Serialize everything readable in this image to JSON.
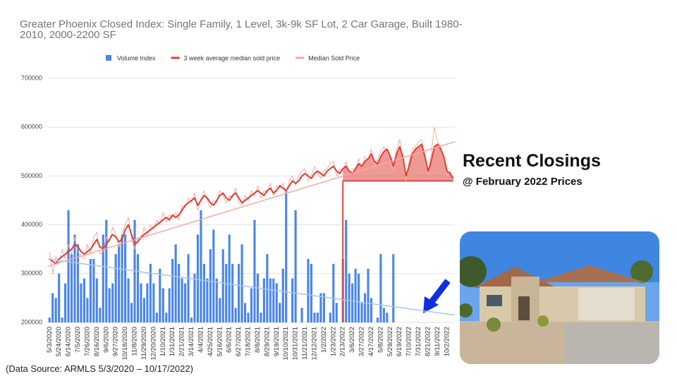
{
  "chart_data": {
    "type": "combo",
    "title": "Greater Phoenix Closed Index:  Single Family, 1 Level, 3k-9k SF Lot, 2 Car Garage, Built 1980-2010, 2000-2200 SF",
    "categories": [
      "5/3/2020",
      null,
      null,
      "5/24/2020",
      null,
      null,
      "6/14/2020",
      null,
      null,
      "7/5/2020",
      null,
      null,
      "7/26/2020",
      null,
      null,
      "8/16/2020",
      null,
      null,
      "9/6/2020",
      null,
      null,
      "9/27/2020",
      null,
      null,
      "10/18/2020",
      null,
      null,
      "11/8/2020",
      null,
      null,
      "11/29/2020",
      null,
      null,
      "12/20/2020",
      null,
      null,
      "1/10/2021",
      null,
      null,
      "1/31/2021",
      null,
      null,
      "2/21/2021",
      null,
      null,
      "3/14/2021",
      null,
      null,
      "4/4/2021",
      null,
      null,
      "4/25/2021",
      null,
      null,
      "5/16/2021",
      null,
      null,
      "6/6/2021",
      null,
      null,
      "6/27/2021",
      null,
      null,
      "7/18/2021",
      null,
      null,
      "8/8/2021",
      null,
      null,
      "8/29/2021",
      null,
      null,
      "9/19/2021",
      null,
      null,
      "10/10/2021",
      null,
      null,
      "10/31/2021",
      null,
      null,
      "11/21/2021",
      null,
      null,
      "12/12/2021",
      null,
      null,
      "1/2/2022",
      null,
      null,
      "1/23/2022",
      null,
      null,
      "2/13/2022",
      null,
      null,
      "3/6/2022",
      null,
      null,
      "3/27/2022",
      null,
      null,
      "4/17/2022",
      null,
      null,
      "5/8/2022",
      null,
      null,
      "5/29/2022",
      null,
      null,
      "6/19/2022",
      null,
      null,
      "7/10/2022",
      null,
      null,
      "7/31/2022",
      null,
      null,
      "8/21/2022",
      null,
      null,
      "9/11/2022",
      null,
      null,
      "10/2/2022",
      null,
      null
    ],
    "series": [
      {
        "name": "Volume Index",
        "type": "bar",
        "color": "#4a86e8",
        "trend": [
          330000,
          215000
        ],
        "trend_color": "#a9c4f2",
        "values": [
          210000,
          260000,
          250000,
          300000,
          210000,
          280000,
          430000,
          340000,
          380000,
          360000,
          280000,
          290000,
          250000,
          330000,
          330000,
          290000,
          230000,
          380000,
          410000,
          270000,
          280000,
          340000,
          360000,
          380000,
          380000,
          290000,
          240000,
          410000,
          340000,
          280000,
          250000,
          280000,
          320000,
          280000,
          220000,
          310000,
          270000,
          220000,
          270000,
          330000,
          360000,
          320000,
          290000,
          280000,
          340000,
          210000,
          300000,
          380000,
          430000,
          320000,
          290000,
          350000,
          390000,
          290000,
          250000,
          350000,
          320000,
          380000,
          320000,
          230000,
          320000,
          360000,
          240000,
          220000,
          270000,
          410000,
          300000,
          220000,
          290000,
          340000,
          290000,
          290000,
          280000,
          240000,
          310000,
          470000,
          null,
          290000,
          430000,
          null,
          230000,
          null,
          330000,
          320000,
          220000,
          220000,
          260000,
          260000,
          null,
          220000,
          320000,
          240000,
          null,
          330000,
          410000,
          300000,
          280000,
          310000,
          300000,
          240000,
          260000,
          310000,
          250000,
          null,
          210000,
          340000,
          230000,
          220000,
          null,
          340000,
          null,
          null,
          null,
          null,
          null,
          null,
          null,
          null,
          null,
          null,
          null,
          null,
          null,
          null,
          null,
          null,
          null,
          null,
          null
        ]
      },
      {
        "name": "3 week average median sold price",
        "type": "line",
        "color": "#dc3f34",
        "width": 2,
        "trend": [
          315000,
          570000
        ],
        "trend_color": "#f2aaa4",
        "values": [
          330000,
          325000,
          320000,
          330000,
          335000,
          340000,
          345000,
          350000,
          360000,
          355000,
          345000,
          340000,
          345000,
          350000,
          360000,
          370000,
          355000,
          350000,
          360000,
          370000,
          380000,
          375000,
          365000,
          370000,
          390000,
          400000,
          380000,
          360000,
          365000,
          375000,
          380000,
          385000,
          390000,
          395000,
          400000,
          405000,
          410000,
          415000,
          410000,
          420000,
          415000,
          420000,
          430000,
          440000,
          445000,
          450000,
          455000,
          440000,
          450000,
          460000,
          455000,
          445000,
          440000,
          450000,
          460000,
          465000,
          455000,
          450000,
          460000,
          465000,
          455000,
          445000,
          450000,
          455000,
          460000,
          465000,
          470000,
          465000,
          460000,
          470000,
          475000,
          465000,
          470000,
          480000,
          475000,
          470000,
          480000,
          490000,
          485000,
          490000,
          500000,
          505000,
          500000,
          495000,
          505000,
          510000,
          505000,
          500000,
          510000,
          515000,
          520000,
          510000,
          505000,
          515000,
          520000,
          510000,
          505000,
          515000,
          525000,
          520000,
          530000,
          535000,
          545000,
          530000,
          525000,
          540000,
          550000,
          555000,
          540000,
          520000,
          545000,
          560000,
          540000,
          500000,
          520000,
          545000,
          555000,
          560000,
          565000,
          540000,
          510000,
          530000,
          560000,
          565000,
          555000,
          540000,
          510000,
          505000,
          495000
        ]
      },
      {
        "name": "Median Sold Price",
        "type": "line",
        "color": "#f1aaa3",
        "width": 1,
        "values": [
          345000,
          300000,
          335000,
          320000,
          350000,
          330000,
          360000,
          340000,
          375000,
          345000,
          335000,
          330000,
          360000,
          340000,
          375000,
          385000,
          340000,
          345000,
          375000,
          365000,
          395000,
          380000,
          355000,
          385000,
          400000,
          415000,
          370000,
          350000,
          375000,
          370000,
          395000,
          375000,
          400000,
          390000,
          410000,
          400000,
          425000,
          405000,
          420000,
          415000,
          425000,
          410000,
          440000,
          435000,
          455000,
          445000,
          465000,
          430000,
          455000,
          470000,
          450000,
          435000,
          450000,
          445000,
          470000,
          460000,
          445000,
          460000,
          455000,
          475000,
          445000,
          440000,
          460000,
          450000,
          470000,
          460000,
          480000,
          455000,
          470000,
          465000,
          485000,
          460000,
          480000,
          475000,
          485000,
          465000,
          490000,
          500000,
          480000,
          500000,
          510000,
          515000,
          490000,
          500000,
          520000,
          505000,
          495000,
          510000,
          515000,
          525000,
          530000,
          500000,
          515000,
          510000,
          530000,
          500000,
          515000,
          510000,
          535000,
          515000,
          540000,
          530000,
          555000,
          520000,
          535000,
          550000,
          560000,
          545000,
          530000,
          510000,
          555000,
          575000,
          530000,
          490000,
          530000,
          555000,
          560000,
          570000,
          575000,
          530000,
          500000,
          545000,
          600000,
          570000,
          560000,
          535000,
          500000,
          510000,
          490000
        ]
      }
    ],
    "reference": {
      "value": 490000,
      "start": "2/13/2022",
      "color": "#e0463c"
    },
    "ylim": [
      200000,
      700000
    ],
    "yticks": [
      200000,
      300000,
      400000,
      500000,
      600000,
      700000
    ],
    "grid": true,
    "legend": "top"
  },
  "side_title": "Recent Closings",
  "side_subtitle": "@ February 2022 Prices",
  "source": "(Data Source:  ARMLS 5/3/2020 – 10/17/2022)"
}
